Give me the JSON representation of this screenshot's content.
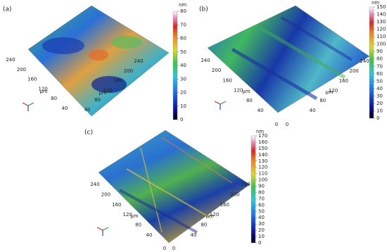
{
  "panels": [
    {
      "label": "(a)",
      "unit": "nm",
      "colorbar_ticks": [
        0,
        10,
        20,
        30,
        40,
        50,
        60,
        70,
        80
      ],
      "left_axis": [
        240,
        200,
        160,
        120,
        80,
        40
      ],
      "left_unit": "μm",
      "right_axis": [
        240,
        200,
        160,
        120,
        80,
        40
      ],
      "right_unit": "μm"
    },
    {
      "label": "(b)",
      "unit": "nm",
      "colorbar_ticks": [
        0,
        10,
        20,
        30,
        40,
        50,
        60,
        70,
        80,
        90,
        100,
        110,
        120,
        130,
        140,
        150
      ],
      "left_axis": [
        240,
        200,
        160,
        120,
        80,
        40
      ],
      "left_unit": "μm",
      "right_axis": [
        240,
        200,
        160,
        120,
        80,
        40
      ],
      "right_unit": "μm",
      "origin": [
        0,
        0
      ]
    },
    {
      "label": "(c)",
      "unit": "nm",
      "colorbar_ticks": [
        0,
        10,
        20,
        30,
        40,
        50,
        60,
        70,
        80,
        90,
        100,
        110,
        120,
        130,
        140,
        150,
        160,
        170
      ],
      "left_axis": [
        240,
        200,
        160,
        120,
        80,
        40
      ],
      "left_unit": "μm",
      "right_axis": [
        240,
        200,
        160,
        120,
        80,
        40
      ],
      "right_unit": "μm",
      "origin": [
        0,
        0
      ]
    }
  ]
}
